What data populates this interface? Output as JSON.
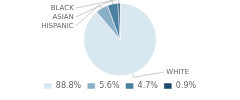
{
  "chart_data": {
    "type": "pie",
    "categories": [
      "WHITE",
      "HISPANIC",
      "ASIAN",
      "BLACK"
    ],
    "values": [
      88.8,
      5.6,
      4.7,
      0.9
    ],
    "value_labels": [
      "88.8%",
      "5.6%",
      "4.7%",
      "0.9%"
    ],
    "colors": [
      "#d9e8f0",
      "#8aafc7",
      "#4a7fa0",
      "#1a4a6b"
    ],
    "legend": "bottom"
  }
}
